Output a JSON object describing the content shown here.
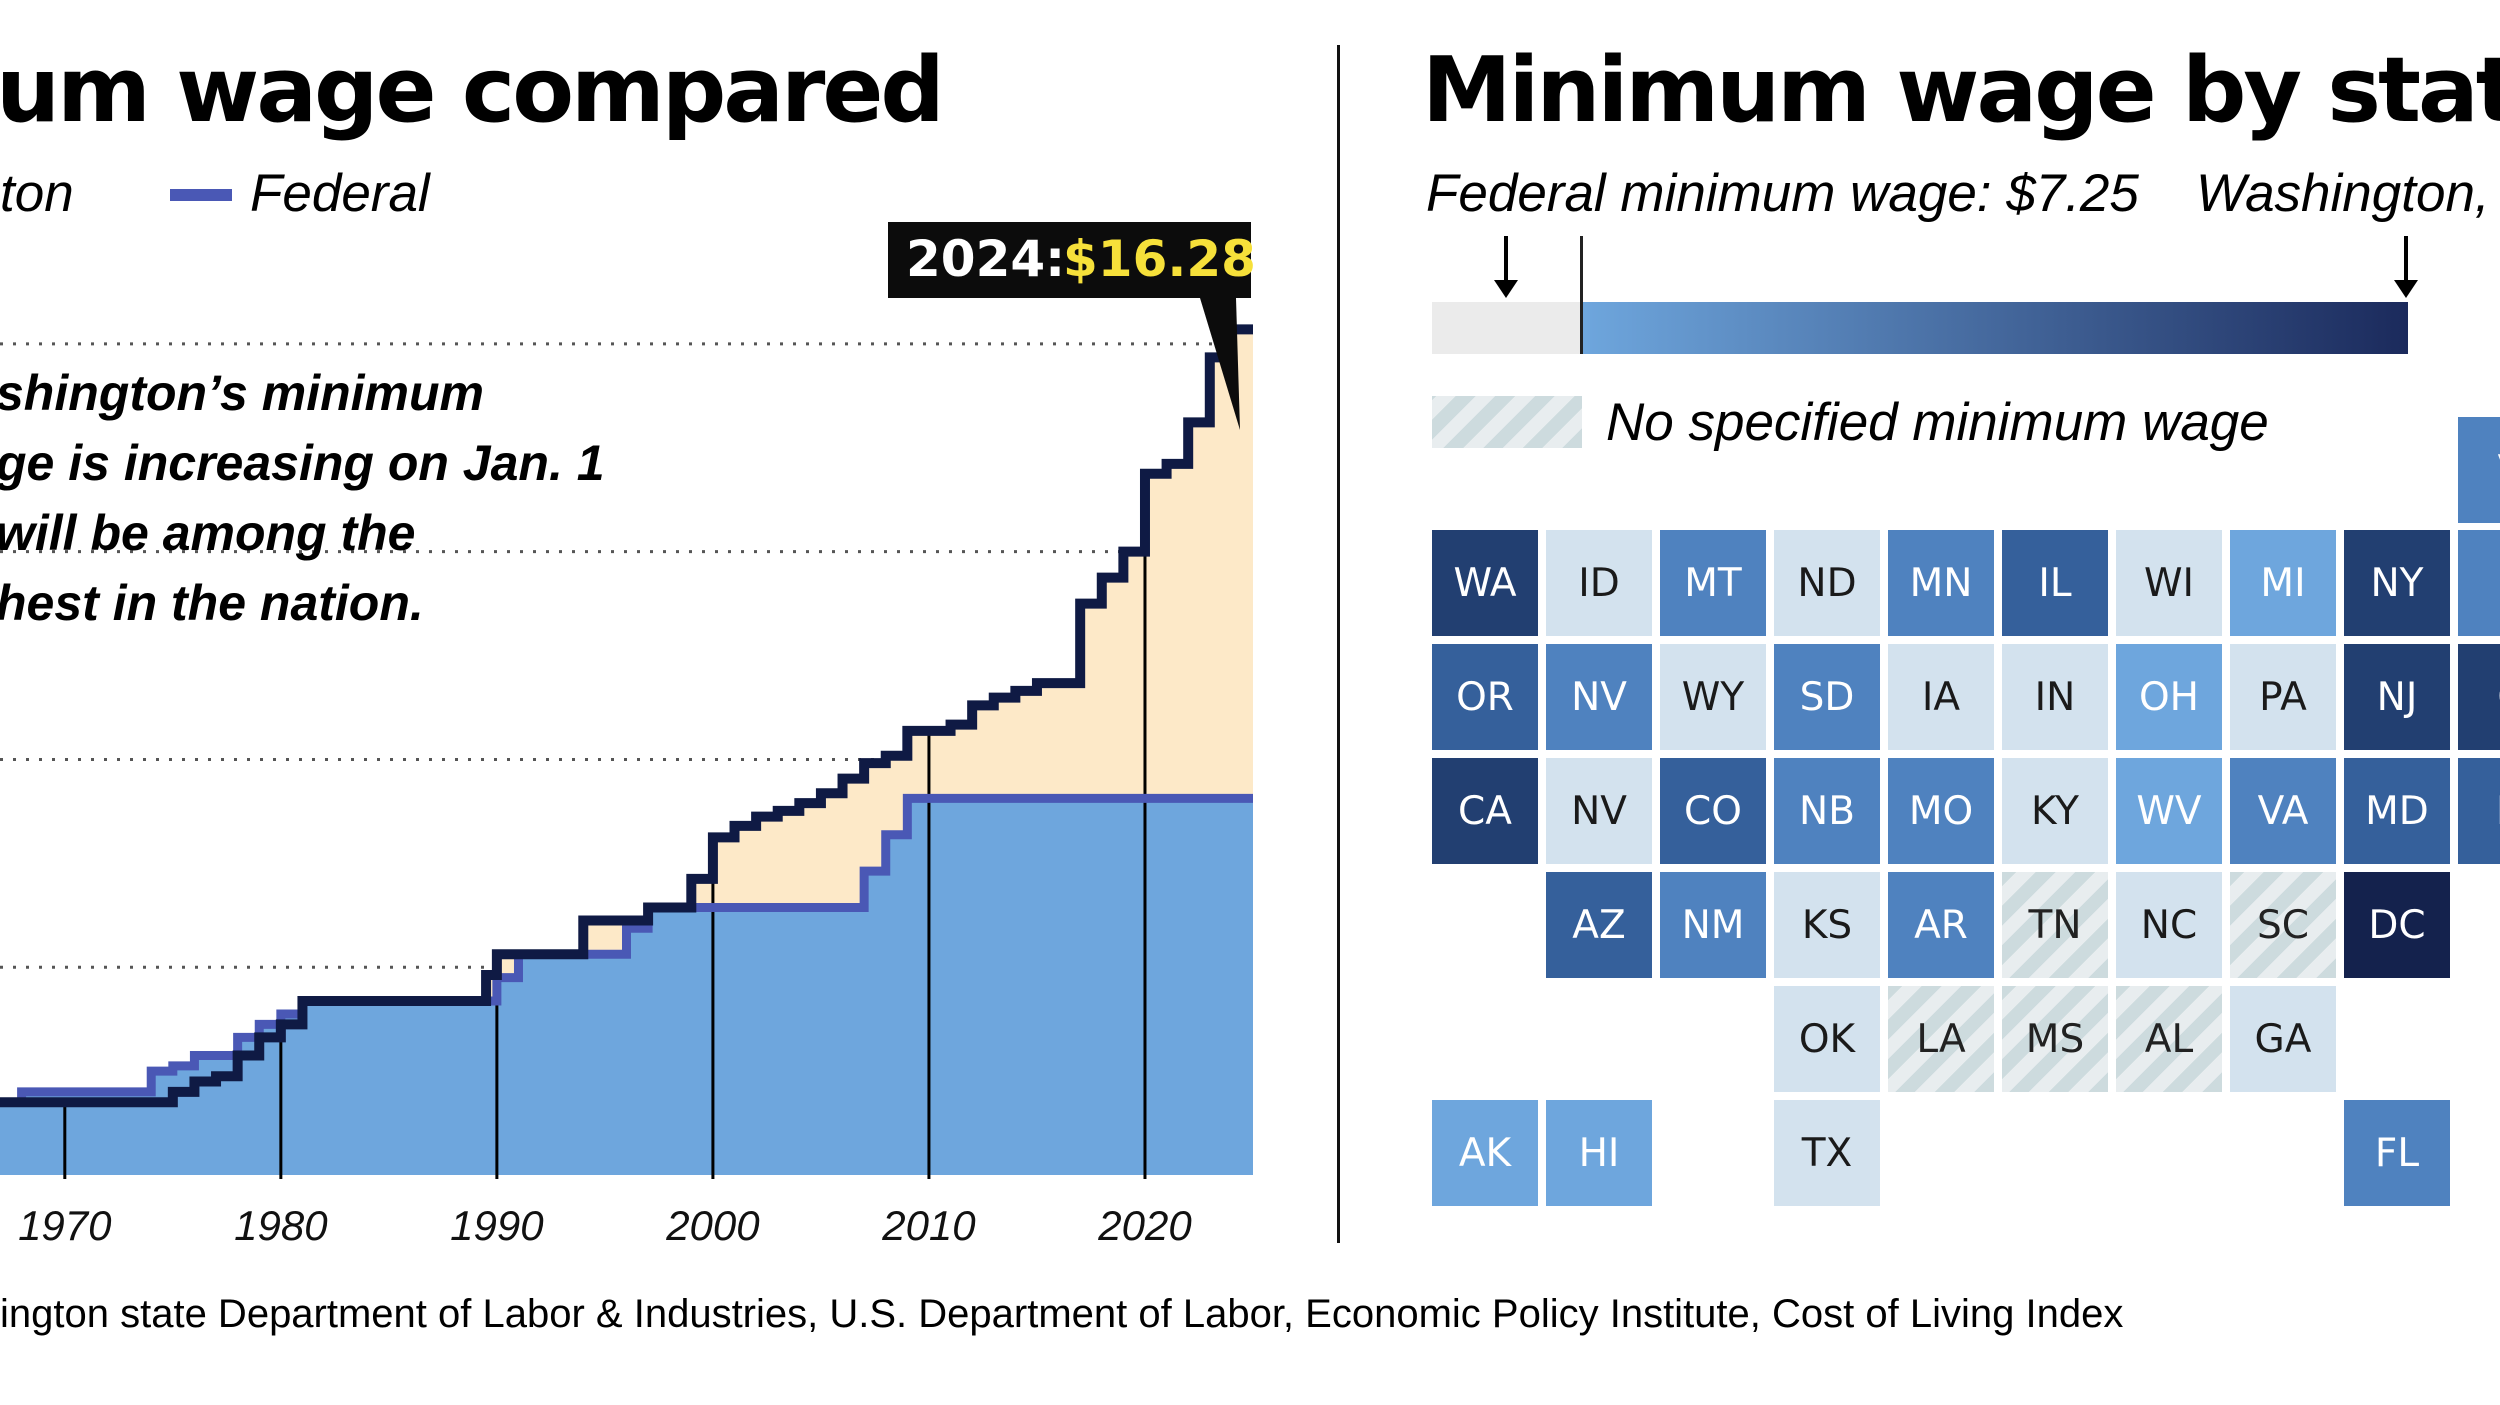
{
  "left": {
    "title": "um wage compared",
    "legend": [
      {
        "label": "ton",
        "color": "#0f1a44"
      },
      {
        "label": "Federal",
        "color": "#4a58b5"
      }
    ],
    "annotation_lines": [
      "shington’s minimum",
      "ge is increasing on Jan. 1",
      " will be among the",
      "hest in the nation."
    ],
    "callout": {
      "year_label": "2024:",
      "value_label": "$16.28"
    }
  },
  "right": {
    "title": "Minimum wage by state",
    "scale_label_left": "Federal minimum wage: $7.25",
    "scale_label_right": "Washington,",
    "no_wage_label": "No specified minimum wage"
  },
  "source": "ington state Department of Labor & Industries, U.S. Department of Labor, Economic Policy Institute, Cost of Living Index",
  "chart_data": [
    {
      "type": "area",
      "title": "um wage compared",
      "x_tick_labels": [
        "1970",
        "1980",
        "1990",
        "2000",
        "2010",
        "2020"
      ],
      "xlim": [
        1967,
        2025
      ],
      "ylim": [
        0,
        18
      ],
      "grid": "dotted horizontal",
      "series": [
        {
          "name": "ton",
          "color": "#0f1a44",
          "fill": "#fde9c8",
          "points": [
            [
              1967,
              1.4
            ],
            [
              1974,
              1.4
            ],
            [
              1975,
              1.6
            ],
            [
              1976,
              1.8
            ],
            [
              1977,
              1.9
            ],
            [
              1978,
              2.3
            ],
            [
              1979,
              2.65
            ],
            [
              1980,
              2.9
            ],
            [
              1981,
              3.35
            ],
            [
              1989,
              3.35
            ],
            [
              1989.5,
              3.85
            ],
            [
              1990,
              4.25
            ],
            [
              1994,
              4.25
            ],
            [
              1994,
              4.9
            ],
            [
              1997,
              4.9
            ],
            [
              1997,
              5.15
            ],
            [
              1999,
              5.15
            ],
            [
              1999,
              5.7
            ],
            [
              2000,
              6.5
            ],
            [
              2001,
              6.72
            ],
            [
              2002,
              6.9
            ],
            [
              2003,
              7.01
            ],
            [
              2004,
              7.16
            ],
            [
              2005,
              7.35
            ],
            [
              2006,
              7.63
            ],
            [
              2007,
              7.93
            ],
            [
              2008,
              8.07
            ],
            [
              2009,
              8.55
            ],
            [
              2011,
              8.67
            ],
            [
              2012,
              9.04
            ],
            [
              2013,
              9.19
            ],
            [
              2014,
              9.32
            ],
            [
              2015,
              9.47
            ],
            [
              2016,
              9.47
            ],
            [
              2017,
              11.0
            ],
            [
              2018,
              11.5
            ],
            [
              2019,
              12.0
            ],
            [
              2020,
              13.5
            ],
            [
              2021,
              13.69
            ],
            [
              2022,
              14.49
            ],
            [
              2023,
              15.74
            ],
            [
              2024,
              16.28
            ],
            [
              2025,
              16.28
            ]
          ]
        },
        {
          "name": "Federal",
          "color": "#4a58b5",
          "fill": "#6ea6dd",
          "points": [
            [
              1967,
              1.4
            ],
            [
              1968,
              1.6
            ],
            [
              1974,
              1.6
            ],
            [
              1974,
              2.0
            ],
            [
              1975,
              2.1
            ],
            [
              1976,
              2.3
            ],
            [
              1978,
              2.65
            ],
            [
              1979,
              2.9
            ],
            [
              1980,
              3.1
            ],
            [
              1981,
              3.35
            ],
            [
              1990,
              3.8
            ],
            [
              1991,
              4.25
            ],
            [
              1996,
              4.75
            ],
            [
              1997,
              5.15
            ],
            [
              2007,
              5.85
            ],
            [
              2008,
              6.55
            ],
            [
              2009,
              7.25
            ],
            [
              2025,
              7.25
            ]
          ]
        }
      ],
      "annotations": [
        {
          "x": 2024,
          "y": 16.28,
          "text": "2024: $16.28"
        }
      ]
    },
    {
      "type": "heatmap",
      "title": "Minimum wage by state",
      "color_scale": {
        "low_label": "Federal minimum wage: $7.25",
        "high_label": "Washington,",
        "colors": [
          "#6ea6dd",
          "#1b2a5c"
        ],
        "no_data_color": "#e6e6e6"
      },
      "no_data_label": "No specified minimum wage",
      "tiles": [
        {
          "state": "WA",
          "row": 1,
          "col": 0,
          "level": 5
        },
        {
          "state": "ID",
          "row": 1,
          "col": 1,
          "level": 1
        },
        {
          "state": "MT",
          "row": 1,
          "col": 2,
          "level": 3
        },
        {
          "state": "ND",
          "row": 1,
          "col": 3,
          "level": 1
        },
        {
          "state": "MN",
          "row": 1,
          "col": 4,
          "level": 3
        },
        {
          "state": "IL",
          "row": 1,
          "col": 5,
          "level": 4
        },
        {
          "state": "WI",
          "row": 1,
          "col": 6,
          "level": 1
        },
        {
          "state": "MI",
          "row": 1,
          "col": 7,
          "level": 2
        },
        {
          "state": "NY",
          "row": 1,
          "col": 8,
          "level": 5
        },
        {
          "state": "P",
          "row": 1,
          "col": 9,
          "level": 3
        },
        {
          "state": "OR",
          "row": 2,
          "col": 0,
          "level": 4
        },
        {
          "state": "NV",
          "row": 2,
          "col": 1,
          "level": 3
        },
        {
          "state": "WY",
          "row": 2,
          "col": 2,
          "level": 1
        },
        {
          "state": "SD",
          "row": 2,
          "col": 3,
          "level": 3
        },
        {
          "state": "IA",
          "row": 2,
          "col": 4,
          "level": 1
        },
        {
          "state": "IN",
          "row": 2,
          "col": 5,
          "level": 1
        },
        {
          "state": "OH",
          "row": 2,
          "col": 6,
          "level": 2
        },
        {
          "state": "PA",
          "row": 2,
          "col": 7,
          "level": 1
        },
        {
          "state": "NJ",
          "row": 2,
          "col": 8,
          "level": 5
        },
        {
          "state": "C",
          "row": 2,
          "col": 9,
          "level": 5
        },
        {
          "state": "CA",
          "row": 3,
          "col": 0,
          "level": 5
        },
        {
          "state": "NV",
          "row": 3,
          "col": 1,
          "level": 1
        },
        {
          "state": "CO",
          "row": 3,
          "col": 2,
          "level": 4
        },
        {
          "state": "NB",
          "row": 3,
          "col": 3,
          "level": 3
        },
        {
          "state": "MO",
          "row": 3,
          "col": 4,
          "level": 3
        },
        {
          "state": "KY",
          "row": 3,
          "col": 5,
          "level": 1
        },
        {
          "state": "WV",
          "row": 3,
          "col": 6,
          "level": 2
        },
        {
          "state": "VA",
          "row": 3,
          "col": 7,
          "level": 3
        },
        {
          "state": "MD",
          "row": 3,
          "col": 8,
          "level": 4
        },
        {
          "state": "D",
          "row": 3,
          "col": 9,
          "level": 4
        },
        {
          "state": "AZ",
          "row": 4,
          "col": 1,
          "level": 4
        },
        {
          "state": "NM",
          "row": 4,
          "col": 2,
          "level": 3
        },
        {
          "state": "KS",
          "row": 4,
          "col": 3,
          "level": 1
        },
        {
          "state": "AR",
          "row": 4,
          "col": 4,
          "level": 3
        },
        {
          "state": "TN",
          "row": 4,
          "col": 5,
          "level": 0
        },
        {
          "state": "NC",
          "row": 4,
          "col": 6,
          "level": 1
        },
        {
          "state": "SC",
          "row": 4,
          "col": 7,
          "level": 0
        },
        {
          "state": "DC",
          "row": 4,
          "col": 8,
          "level": 6
        },
        {
          "state": "OK",
          "row": 5,
          "col": 3,
          "level": 1
        },
        {
          "state": "LA",
          "row": 5,
          "col": 4,
          "level": 0
        },
        {
          "state": "MS",
          "row": 5,
          "col": 5,
          "level": 0
        },
        {
          "state": "AL",
          "row": 5,
          "col": 6,
          "level": 0
        },
        {
          "state": "GA",
          "row": 5,
          "col": 7,
          "level": 1
        },
        {
          "state": "AK",
          "row": 6,
          "col": 0,
          "level": 2
        },
        {
          "state": "HI",
          "row": 6,
          "col": 1,
          "level": 2
        },
        {
          "state": "TX",
          "row": 6,
          "col": 3,
          "level": 1
        },
        {
          "state": "FL",
          "row": 6,
          "col": 8,
          "level": 3
        },
        {
          "state": "V",
          "row": 0,
          "col": 9,
          "level": 3
        }
      ]
    }
  ]
}
